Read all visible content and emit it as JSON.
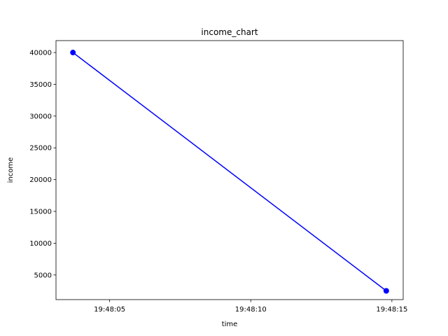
{
  "chart_data": {
    "type": "line",
    "title": "income_chart",
    "xlabel": "time",
    "ylabel": "income",
    "x_ticks": [
      {
        "value": "19:48:05",
        "label": "19:48:05"
      },
      {
        "value": "19:48:10",
        "label": "19:48:10"
      },
      {
        "value": "19:48:15",
        "label": "19:48:15"
      }
    ],
    "y_ticks": [
      5000,
      10000,
      15000,
      20000,
      25000,
      30000,
      35000,
      40000
    ],
    "xlim": [
      "19:48:03.1",
      "19:48:15.4"
    ],
    "ylim": [
      1125,
      41875
    ],
    "grid": false,
    "series": [
      {
        "color": "#0000ff",
        "marker": "circle",
        "points": [
          {
            "x": "19:48:03.7",
            "y": 40000
          },
          {
            "x": "19:48:14.8",
            "y": 2500
          }
        ]
      }
    ]
  }
}
